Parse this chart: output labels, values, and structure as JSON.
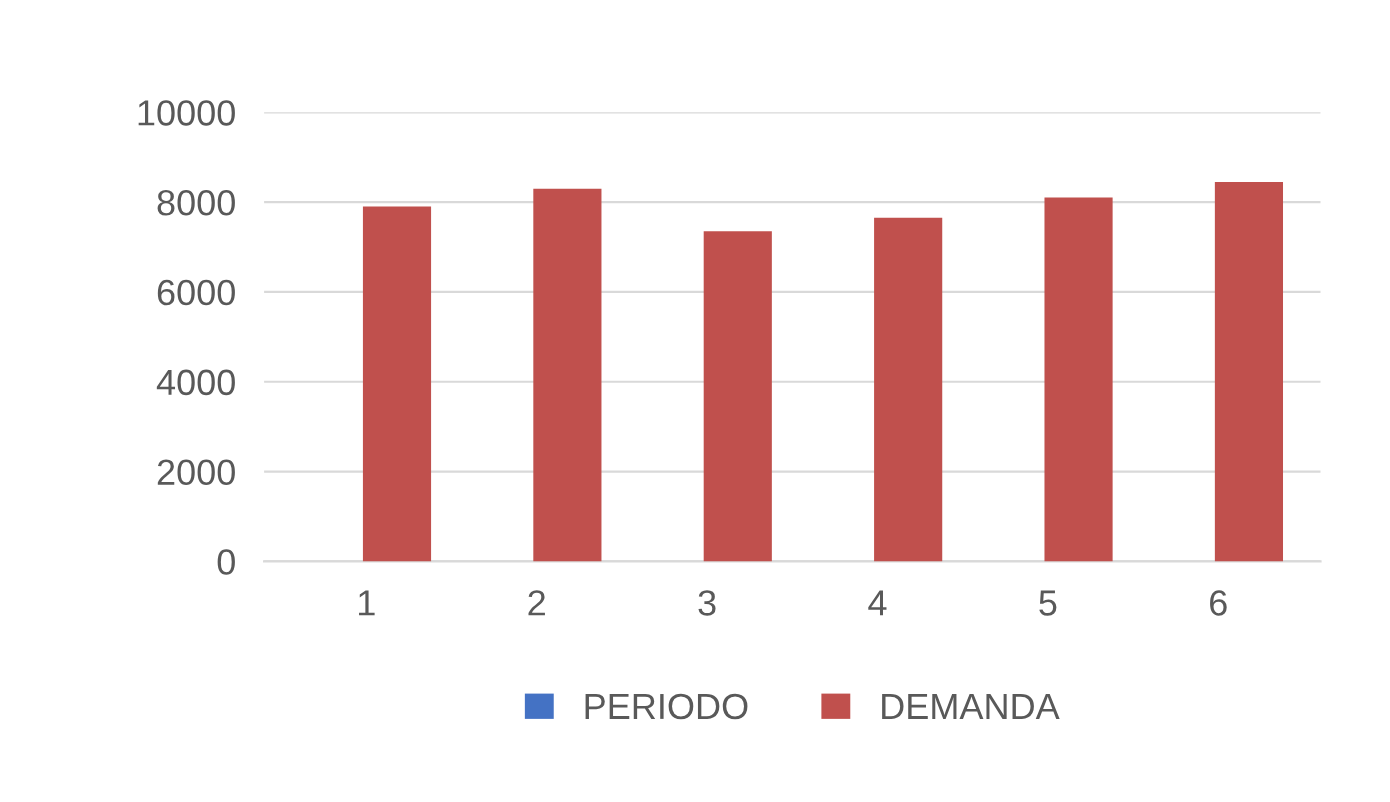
{
  "chart_data": {
    "type": "bar",
    "categories": [
      "1",
      "2",
      "3",
      "4",
      "5",
      "6"
    ],
    "series": [
      {
        "name": "PERIODO",
        "color": "#4472c4",
        "values": [
          null,
          null,
          null,
          null,
          null,
          null
        ]
      },
      {
        "name": "DEMANDA",
        "color": "#c0504d",
        "values": [
          7900,
          8300,
          7350,
          7650,
          8100,
          8450
        ]
      }
    ],
    "ylim": [
      0,
      10000
    ],
    "yticks": [
      0,
      2000,
      4000,
      6000,
      8000,
      10000
    ],
    "grid": "y",
    "legend": "bottom"
  }
}
